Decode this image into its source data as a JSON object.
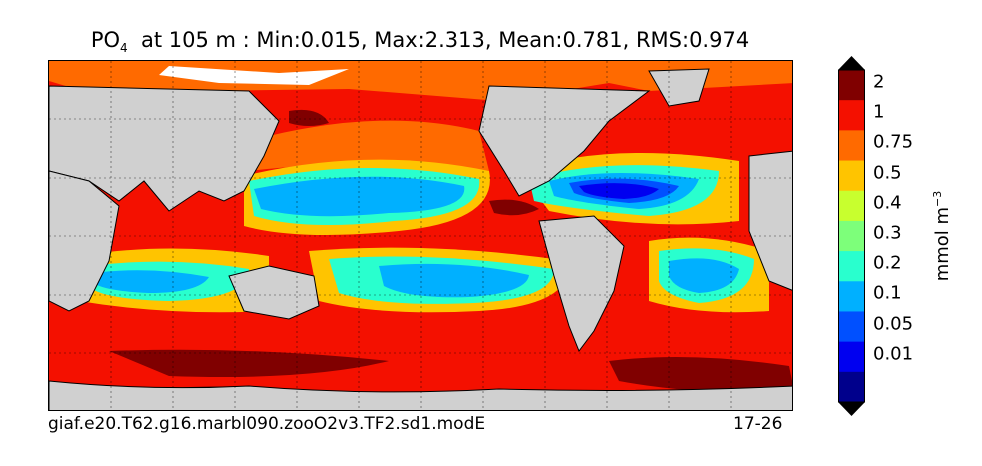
{
  "title": {
    "prefix": "PO",
    "subscript": "4",
    "suffix": "  at 105 m : Min:0.015, Max:2.313, Mean:0.781, RMS:0.974"
  },
  "footer": {
    "run_name": "giaf.e20.T62.g16.marbl090.zooO2v3.TF2.sd1.modE",
    "years": "17-26"
  },
  "colorbar": {
    "units_base": "mmol m",
    "units_exp": "−3",
    "labels": [
      "2",
      "1",
      "0.75",
      "0.5",
      "0.4",
      "0.3",
      "0.2",
      "0.1",
      "0.05",
      "0.01"
    ],
    "colors_top_to_bottom": [
      "#800000",
      "#f41000",
      "#ff6a00",
      "#ffc400",
      "#c8ff2e",
      "#7dff7a",
      "#29ffce",
      "#00b0ff",
      "#0050ff",
      "#0000f0",
      "#00008c"
    ],
    "over_color": "#000000",
    "under_color": "#000000"
  },
  "map": {
    "land_color": "#d0d0d0",
    "grid": "dotted"
  }
}
